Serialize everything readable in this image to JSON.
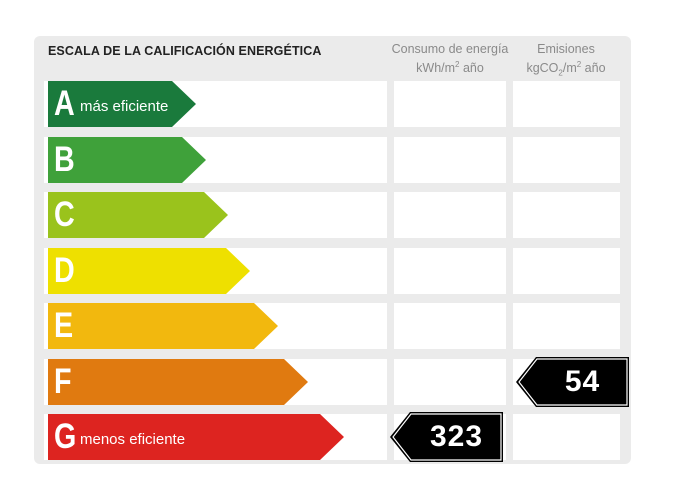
{
  "title": "ESCALA DE LA CALIFICACIÓN ENERGÉTICA",
  "columns": {
    "consumo": {
      "line1": "Consumo de energía",
      "unit_pre": "kWh/m",
      "unit_sup": "2",
      "unit_post": " año"
    },
    "emisiones": {
      "line1": "Emisiones",
      "unit_pre": "kgCO",
      "unit_sub": "2",
      "unit_mid": "/m",
      "unit_sup": "2",
      "unit_post": " año"
    }
  },
  "classes": [
    {
      "letter": "A",
      "label": "más eficiente",
      "color": "#1a7a3c"
    },
    {
      "letter": "B",
      "label": "",
      "color": "#3fa13a"
    },
    {
      "letter": "C",
      "label": "",
      "color": "#9ac31c"
    },
    {
      "letter": "D",
      "label": "",
      "color": "#eee000"
    },
    {
      "letter": "E",
      "label": "",
      "color": "#f2b80e"
    },
    {
      "letter": "F",
      "label": "",
      "color": "#e07a10"
    },
    {
      "letter": "G",
      "label": "menos eficiente",
      "color": "#dd2420"
    }
  ],
  "ratings": {
    "consumo": {
      "class": "G",
      "value": "323"
    },
    "emisiones": {
      "class": "F",
      "value": "54"
    }
  }
}
